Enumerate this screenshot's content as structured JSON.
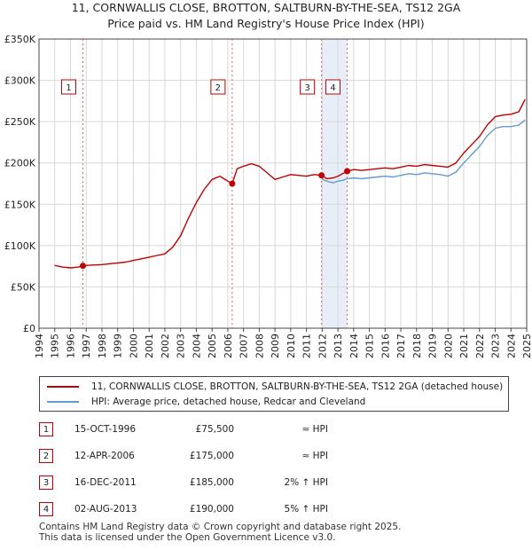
{
  "title": {
    "line1": "11, CORNWALLIS CLOSE, BROTTON, SALTBURN-BY-THE-SEA, TS12 2GA",
    "line2": "Price paid vs. HM Land Registry's House Price Index (HPI)"
  },
  "colors": {
    "property": "#c00000",
    "hpi": "#6699cc",
    "band": "#e8eef8",
    "grid": "#d8d8d8"
  },
  "chart_data": {
    "type": "line",
    "title": "Price paid vs. HM Land Registry's House Price Index (HPI)",
    "xlabel": "",
    "ylabel": "",
    "xlim": [
      1994,
      2025
    ],
    "ylim": [
      0,
      350000
    ],
    "y_ticks": [
      {
        "value": 0,
        "label": "£0"
      },
      {
        "value": 50000,
        "label": "£50K"
      },
      {
        "value": 100000,
        "label": "£100K"
      },
      {
        "value": 150000,
        "label": "£150K"
      },
      {
        "value": 200000,
        "label": "£200K"
      },
      {
        "value": 250000,
        "label": "£250K"
      },
      {
        "value": 300000,
        "label": "£300K"
      },
      {
        "value": 350000,
        "label": "£350K"
      }
    ],
    "x_ticks": [
      1994,
      1995,
      1996,
      1997,
      1998,
      1999,
      2000,
      2001,
      2002,
      2003,
      2004,
      2005,
      2006,
      2007,
      2008,
      2009,
      2010,
      2011,
      2012,
      2013,
      2014,
      2015,
      2016,
      2017,
      2018,
      2019,
      2020,
      2021,
      2022,
      2023,
      2024,
      2025
    ],
    "grid": true,
    "series": [
      {
        "name": "11, CORNWALLIS CLOSE, BROTTON, SALTBURN-BY-THE-SEA, TS12 2GA (detached house)",
        "color": "#c00000",
        "x": [
          1995.0,
          1995.5,
          1996.0,
          1996.5,
          1996.79,
          1997.0,
          1997.5,
          1998.0,
          1998.5,
          1999.0,
          1999.5,
          2000.0,
          2000.5,
          2001.0,
          2001.5,
          2002.0,
          2002.5,
          2003.0,
          2003.5,
          2004.0,
          2004.5,
          2005.0,
          2005.5,
          2006.0,
          2006.28,
          2006.6,
          2007.0,
          2007.5,
          2008.0,
          2008.5,
          2009.0,
          2009.5,
          2010.0,
          2010.5,
          2011.0,
          2011.5,
          2011.96,
          2012.3,
          2012.7,
          2013.0,
          2013.3,
          2013.59,
          2014.0,
          2014.5,
          2015.0,
          2015.5,
          2016.0,
          2016.5,
          2017.0,
          2017.5,
          2018.0,
          2018.5,
          2019.0,
          2019.5,
          2020.0,
          2020.5,
          2021.0,
          2021.5,
          2022.0,
          2022.5,
          2023.0,
          2023.5,
          2024.0,
          2024.5,
          2024.9
        ],
        "y": [
          76000,
          74000,
          73000,
          74000,
          75500,
          76000,
          76500,
          77000,
          78000,
          79000,
          80000,
          82000,
          84000,
          86000,
          88000,
          90000,
          98000,
          112000,
          133000,
          152000,
          168000,
          180000,
          184000,
          178000,
          175000,
          193000,
          196000,
          199000,
          196000,
          188000,
          180000,
          183000,
          186000,
          185000,
          184000,
          186000,
          185000,
          181000,
          182000,
          184000,
          187000,
          190000,
          192000,
          191000,
          192000,
          193000,
          194000,
          193000,
          195000,
          197000,
          196000,
          198000,
          197000,
          196000,
          195000,
          200000,
          212000,
          222000,
          232000,
          246000,
          256000,
          258000,
          259000,
          262000,
          277000
        ]
      },
      {
        "name": "HPI: Average price, detached house, Redcar and Cleveland",
        "color": "#6699cc",
        "x": [
          2011.96,
          2012.3,
          2012.7,
          2013.0,
          2013.3,
          2013.59,
          2014.0,
          2014.5,
          2015.0,
          2015.5,
          2016.0,
          2016.5,
          2017.0,
          2017.5,
          2018.0,
          2018.5,
          2019.0,
          2019.5,
          2020.0,
          2020.5,
          2021.0,
          2021.5,
          2022.0,
          2022.5,
          2023.0,
          2023.5,
          2024.0,
          2024.5,
          2024.9
        ],
        "y": [
          181000,
          178000,
          176000,
          178000,
          179000,
          181000,
          182000,
          181000,
          182000,
          183000,
          184000,
          183000,
          185000,
          187000,
          186000,
          188000,
          187000,
          186000,
          184000,
          189000,
          200000,
          210000,
          220000,
          233000,
          242000,
          244000,
          244000,
          246000,
          252000
        ]
      }
    ],
    "sales": [
      {
        "num": "1",
        "date": "15-OCT-1996",
        "price": "£75,500",
        "hpi": "≈ HPI",
        "x": 1996.79,
        "y": 75500
      },
      {
        "num": "2",
        "date": "12-APR-2006",
        "price": "£175,000",
        "hpi": "≈ HPI",
        "x": 2006.28,
        "y": 175000
      },
      {
        "num": "3",
        "date": "16-DEC-2011",
        "price": "£185,000",
        "hpi": "2% ↑ HPI",
        "x": 2011.96,
        "y": 185000
      },
      {
        "num": "4",
        "date": "02-AUG-2013",
        "price": "£190,000",
        "hpi": "5% ↑ HPI",
        "x": 2013.59,
        "y": 190000
      }
    ],
    "shaded_range": [
      2011.96,
      2013.59
    ]
  },
  "legend": {
    "property_label": "11, CORNWALLIS CLOSE, BROTTON, SALTBURN-BY-THE-SEA, TS12 2GA (detached house)",
    "hpi_label": "HPI: Average price, detached house, Redcar and Cleveland"
  },
  "footer": {
    "line1": "Contains HM Land Registry data © Crown copyright and database right 2025.",
    "line2": "This data is licensed under the Open Government Licence v3.0."
  }
}
